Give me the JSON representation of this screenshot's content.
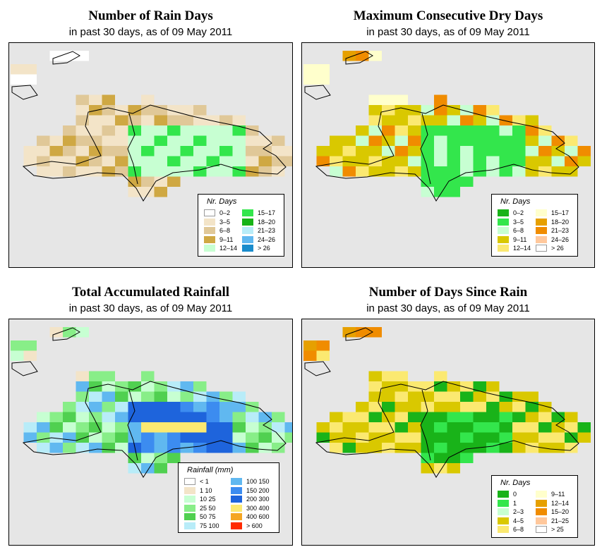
{
  "panels": [
    {
      "title": "Number of Rain Days",
      "subtitle": "in past 30 days, as of  09 May 2011",
      "legend_title": "Nr. Days",
      "legend": [
        {
          "label": "0–2",
          "color": "#ffffff"
        },
        {
          "label": "3–5",
          "color": "#f3e4c8"
        },
        {
          "label": "6–8",
          "color": "#e0c898"
        },
        {
          "label": "9–11",
          "color": "#cfa843"
        },
        {
          "label": "12–14",
          "color": "#c7ffd2"
        },
        {
          "label": "15–17",
          "color": "#33e64c"
        },
        {
          "label": "18–20",
          "color": "#17b317"
        },
        {
          "label": "21–23",
          "color": "#b8ecf8"
        },
        {
          "label": "24–26",
          "color": "#60b8f0"
        },
        {
          "label": "> 26",
          "color": "#1a8ccc"
        }
      ]
    },
    {
      "title": "Maximum Consecutive Dry Days",
      "subtitle": "in past 30 days, as of  09 May 2011",
      "legend_title": "Nr. Days",
      "legend": [
        {
          "label": "0–2",
          "color": "#19b319"
        },
        {
          "label": "3–5",
          "color": "#33e64c"
        },
        {
          "label": "6–8",
          "color": "#c7ffd2"
        },
        {
          "label": "9–11",
          "color": "#d9c800"
        },
        {
          "label": "12–14",
          "color": "#fbe971"
        },
        {
          "label": "15–17",
          "color": "#ffffcc"
        },
        {
          "label": "18–20",
          "color": "#e6a000"
        },
        {
          "label": "21–23",
          "color": "#f08c00"
        },
        {
          "label": "24–26",
          "color": "#ffc89c"
        },
        {
          "label": "> 26",
          "color": "#ffffff"
        }
      ]
    },
    {
      "title": "Total Accumulated Rainfall",
      "subtitle": "in past 30 days, as of  09 May 2011",
      "legend_title": "Rainfall (mm)",
      "legend": [
        {
          "label": "< 1",
          "color": "#ffffff"
        },
        {
          "label": "1    10",
          "color": "#f3e4c8"
        },
        {
          "label": "10    25",
          "color": "#c7ffd2"
        },
        {
          "label": "25    50",
          "color": "#88ee88"
        },
        {
          "label": "50    75",
          "color": "#50d050"
        },
        {
          "label": "75   100",
          "color": "#b8ecf8"
        },
        {
          "label": "100  150",
          "color": "#60b8f0"
        },
        {
          "label": "150  200",
          "color": "#3c8cf0"
        },
        {
          "label": "200  300",
          "color": "#1e64dc"
        },
        {
          "label": "300  400",
          "color": "#fbe971"
        },
        {
          "label": "400  600",
          "color": "#f5a623"
        },
        {
          "label": "> 600",
          "color": "#ff2a00"
        }
      ]
    },
    {
      "title": "Number of Days Since Rain",
      "subtitle": "in past 30 days, as of  09 May 2011",
      "legend_title": "Nr. Days",
      "legend": [
        {
          "label": "0",
          "color": "#19b319"
        },
        {
          "label": "1",
          "color": "#33e64c"
        },
        {
          "label": "2–3",
          "color": "#c7ffd2"
        },
        {
          "label": "4–5",
          "color": "#d9c800"
        },
        {
          "label": "6–8",
          "color": "#fbe971"
        },
        {
          "label": "9–11",
          "color": "#ffffcc"
        },
        {
          "label": "12–14",
          "color": "#e6a000"
        },
        {
          "label": "15–20",
          "color": "#f08c00"
        },
        {
          "label": "21–25",
          "color": "#ffc89c"
        },
        {
          "label": "> 25",
          "color": "#ffffff"
        }
      ]
    }
  ],
  "colors": {
    "background": "#e6e6e6",
    "outline": "#000000"
  }
}
